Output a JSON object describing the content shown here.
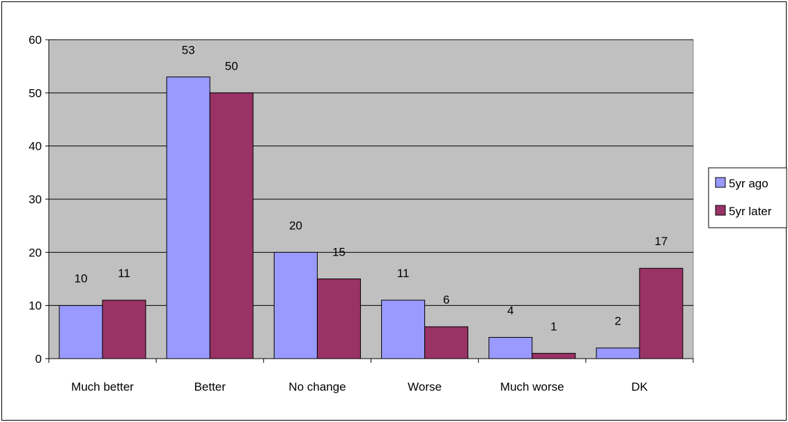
{
  "chart_data": {
    "type": "bar",
    "title": "",
    "xlabel": "",
    "ylabel": "",
    "categories": [
      "Much better",
      "Better",
      "No change",
      "Worse",
      "Much worse",
      "DK"
    ],
    "series": [
      {
        "name": "5yr ago",
        "values": [
          10,
          53,
          20,
          11,
          4,
          2
        ],
        "color": "#9999ff"
      },
      {
        "name": "5yr later",
        "values": [
          11,
          50,
          15,
          6,
          1,
          17
        ],
        "color": "#993366"
      }
    ],
    "data_labels": [
      [
        "10",
        "53",
        "20",
        "11",
        "4",
        "2"
      ],
      [
        "11",
        "50",
        "15",
        "6",
        "1",
        "17"
      ]
    ],
    "ylim": [
      0,
      60
    ],
    "yticks": [
      0,
      10,
      20,
      30,
      40,
      50,
      60
    ],
    "ytick_labels": [
      "0",
      "10",
      "20",
      "30",
      "40",
      "50",
      "60"
    ],
    "grid": true,
    "plot_background": "#c0c0c0",
    "legend_position": "right"
  }
}
